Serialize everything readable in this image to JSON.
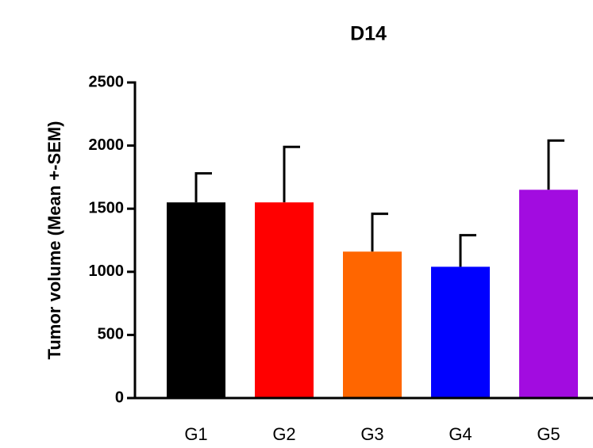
{
  "chart_data": {
    "type": "bar",
    "title": "D14",
    "y_label": "Tumor volume (Mean +-SEM)",
    "categories": [
      "G1",
      "G2",
      "G3",
      "G4",
      "G5"
    ],
    "values": [
      1550,
      1550,
      1160,
      1040,
      1650
    ],
    "errors": [
      230,
      440,
      300,
      250,
      390
    ],
    "colors": [
      "#000000",
      "#ff0000",
      "#ff6600",
      "#0000ff",
      "#a20ce0"
    ],
    "ylim": [
      0,
      2500
    ],
    "yticks": [
      0,
      500,
      1000,
      1500,
      2000,
      2500
    ]
  }
}
